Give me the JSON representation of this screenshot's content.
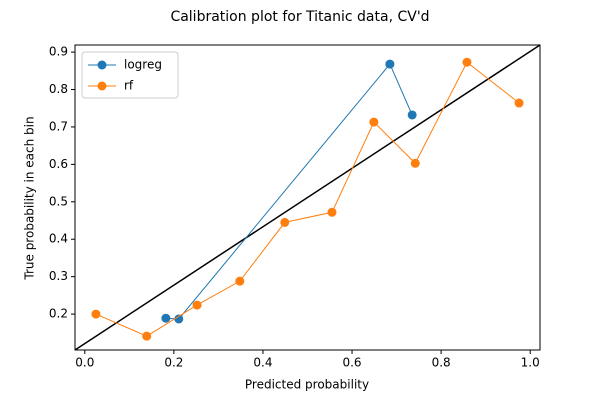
{
  "chart_data": {
    "type": "line",
    "title": "Calibration plot for Titanic data, CV'd",
    "xlabel": "Predicted probability",
    "ylabel": "True probability in each bin",
    "xlim": [
      -0.022,
      1.022
    ],
    "ylim": [
      0.104,
      0.919
    ],
    "xticks": [
      {
        "value": 0,
        "label": "0.0"
      },
      0.2,
      0.4,
      0.6,
      0.8,
      {
        "value": 1,
        "label": "1.0"
      }
    ],
    "yticks": [
      0.2,
      0.3,
      0.4,
      0.5,
      0.6,
      0.7,
      0.8,
      0.9
    ],
    "legend": "upper left",
    "series": [
      {
        "name": "logreg",
        "color": "#1f77b4",
        "x": [
          0.182,
          0.211,
          0.685,
          0.735
        ],
        "values": [
          0.189,
          0.187,
          0.868,
          0.732
        ]
      },
      {
        "name": "rf",
        "color": "#ff7f0e",
        "x": [
          0.025,
          0.139,
          0.252,
          0.348,
          0.449,
          0.555,
          0.649,
          0.742,
          0.858,
          0.975
        ],
        "values": [
          0.2,
          0.141,
          0.224,
          0.288,
          0.445,
          0.472,
          0.713,
          0.603,
          0.873,
          0.764
        ]
      }
    ]
  }
}
